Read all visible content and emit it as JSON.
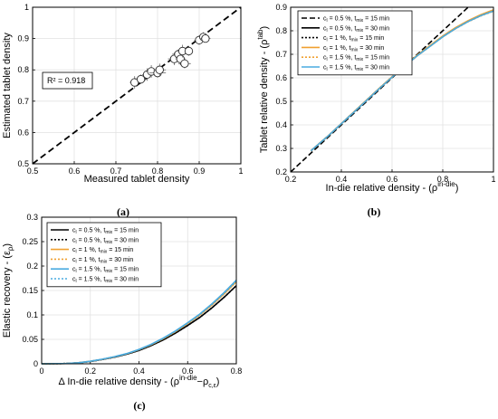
{
  "chart_data": [
    {
      "type": "scatter",
      "caption": "(a)",
      "xlabel": "Measured tablet density",
      "ylabel": "Estimated tablet density",
      "xlim": [
        0.5,
        1
      ],
      "ylim": [
        0.5,
        1
      ],
      "xticks": [
        "0.5",
        "0.6",
        "0.7",
        "0.8",
        "0.9",
        "1"
      ],
      "yticks": [
        "0.5",
        "0.6",
        "0.7",
        "0.8",
        "0.9",
        "1"
      ],
      "grid": true,
      "annotation": "R² = 0.918",
      "identity_line": true,
      "points": [
        {
          "x": 0.745,
          "y": 0.76,
          "xerr": 0.012,
          "yerr": 0.02
        },
        {
          "x": 0.76,
          "y": 0.77,
          "xerr": 0.015,
          "yerr": 0.015
        },
        {
          "x": 0.775,
          "y": 0.785,
          "xerr": 0.012,
          "yerr": 0.02
        },
        {
          "x": 0.785,
          "y": 0.795,
          "xerr": 0.015,
          "yerr": 0.02
        },
        {
          "x": 0.8,
          "y": 0.79,
          "xerr": 0.02,
          "yerr": 0.015
        },
        {
          "x": 0.805,
          "y": 0.8,
          "xerr": 0.015,
          "yerr": 0.02
        },
        {
          "x": 0.84,
          "y": 0.835,
          "xerr": 0.015,
          "yerr": 0.02
        },
        {
          "x": 0.85,
          "y": 0.85,
          "xerr": 0.015,
          "yerr": 0.015
        },
        {
          "x": 0.855,
          "y": 0.835,
          "xerr": 0.012,
          "yerr": 0.02
        },
        {
          "x": 0.86,
          "y": 0.86,
          "xerr": 0.015,
          "yerr": 0.02
        },
        {
          "x": 0.865,
          "y": 0.82,
          "xerr": 0.015,
          "yerr": 0.015
        },
        {
          "x": 0.875,
          "y": 0.86,
          "xerr": 0.01,
          "yerr": 0.015
        },
        {
          "x": 0.9,
          "y": 0.895,
          "xerr": 0.012,
          "yerr": 0.015
        },
        {
          "x": 0.91,
          "y": 0.905,
          "xerr": 0.01,
          "yerr": 0.015
        },
        {
          "x": 0.915,
          "y": 0.9,
          "xerr": 0.012,
          "yerr": 0.012
        }
      ]
    },
    {
      "type": "line",
      "caption": "(b)",
      "xlabel": "In-die relative density - (ρ",
      "xlabel_sup": "in-die",
      "xlabel_end": ")",
      "ylabel": "Tablet relative density - (ρ",
      "ylabel_sup": "tab",
      "ylabel_end": ")",
      "xlim": [
        0.2,
        1
      ],
      "ylim": [
        0.2,
        0.9
      ],
      "xticks": [
        "0.2",
        "0.4",
        "0.6",
        "0.8",
        "1"
      ],
      "yticks": [
        "0.2",
        "0.3",
        "0.4",
        "0.5",
        "0.6",
        "0.7",
        "0.8",
        "0.9"
      ],
      "grid": true,
      "legend": "top-left",
      "series": [
        {
          "c": "0.5 %",
          "t": "15 min",
          "color": "#000000",
          "dash": "6,3",
          "identity": true
        },
        {
          "c": "0.5 %",
          "t": "30 min",
          "color": "#000000",
          "dash": ""
        },
        {
          "c": "1 %",
          "t": "15 min",
          "color": "#000000",
          "dash": "2,2"
        },
        {
          "c": "1 %",
          "t": "30 min",
          "color": "#f0a030",
          "dash": ""
        },
        {
          "c": "1.5 %",
          "t": "15 min",
          "color": "#f0a030",
          "dash": "2,2"
        },
        {
          "c": "1.5 %",
          "t": "30 min",
          "color": "#4aabe0",
          "dash": ""
        }
      ],
      "curve": {
        "x": [
          0.28,
          0.35,
          0.4,
          0.45,
          0.5,
          0.55,
          0.6,
          0.65,
          0.7,
          0.75,
          0.8,
          0.85,
          0.9,
          0.95,
          1.0
        ],
        "y": [
          0.29,
          0.355,
          0.405,
          0.455,
          0.505,
          0.555,
          0.603,
          0.65,
          0.695,
          0.735,
          0.775,
          0.81,
          0.84,
          0.865,
          0.885
        ]
      }
    },
    {
      "type": "line",
      "caption": "(c)",
      "xlabel": "Δ In-die relative density - (ρ",
      "xlabel_sup": "in-die",
      "xlabel_mid": "−ρ",
      "xlabel_sub": "c,ε",
      "xlabel_end": ")",
      "ylabel": "Elastic recovery - (ε",
      "ylabel_sub": "ρ",
      "ylabel_end": ")",
      "xlim": [
        0,
        0.8
      ],
      "ylim": [
        0,
        0.3
      ],
      "xticks": [
        "0",
        "0.2",
        "0.4",
        "0.6",
        "0.8"
      ],
      "yticks": [
        "0",
        "0.05",
        "0.1",
        "0.15",
        "0.2",
        "0.25",
        "0.3"
      ],
      "grid": true,
      "legend": "top-left",
      "series": [
        {
          "c": "0.5 %",
          "t": "15 min",
          "color": "#000000",
          "dash": "",
          "k": 0.98
        },
        {
          "c": "0.5 %",
          "t": "30 min",
          "color": "#000000",
          "dash": "2,2",
          "k": 0.98
        },
        {
          "c": "1 %",
          "t": "15 min",
          "color": "#f0a030",
          "dash": "",
          "k": 1.03
        },
        {
          "c": "1 %",
          "t": "30 min",
          "color": "#f0a030",
          "dash": "2,2",
          "k": 1.03
        },
        {
          "c": "1.5 %",
          "t": "15 min",
          "color": "#4aabe0",
          "dash": "",
          "k": 1.05
        },
        {
          "c": "1.5 %",
          "t": "30 min",
          "color": "#4aabe0",
          "dash": "2,2",
          "k": 1.04
        }
      ],
      "curve": {
        "x": [
          0,
          0.1,
          0.15,
          0.2,
          0.25,
          0.3,
          0.35,
          0.4,
          0.45,
          0.5,
          0.55,
          0.6,
          0.65,
          0.7,
          0.75,
          0.8
        ],
        "y": [
          0,
          0.0005,
          0.002,
          0.005,
          0.009,
          0.014,
          0.02,
          0.028,
          0.038,
          0.05,
          0.064,
          0.08,
          0.097,
          0.117,
          0.139,
          0.163
        ]
      }
    }
  ]
}
